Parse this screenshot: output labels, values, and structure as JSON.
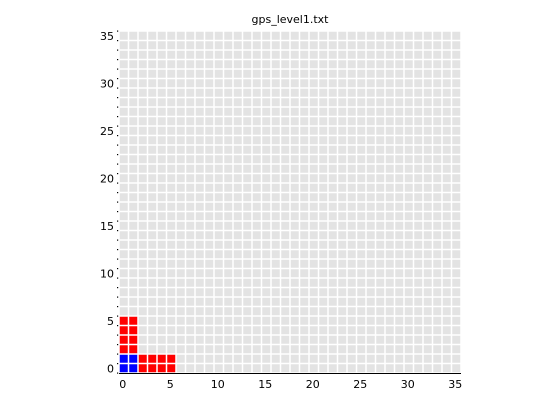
{
  "chart_data": {
    "type": "heatmap",
    "title": "gps_level1.txt",
    "xlabel": "",
    "ylabel": "",
    "xlim": [
      0,
      36
    ],
    "ylim": [
      0,
      36
    ],
    "xticks": [
      0,
      5,
      10,
      15,
      20,
      25,
      30,
      35
    ],
    "yticks": [
      0,
      5,
      10,
      15,
      20,
      25,
      30,
      35
    ],
    "grid": true,
    "colors": {
      "background_cell": "#e3e3e3",
      "red": "#ff0000",
      "blue": "#0000ff"
    },
    "cells": [
      {
        "x": 0,
        "y": 0,
        "color": "blue"
      },
      {
        "x": 1,
        "y": 0,
        "color": "blue"
      },
      {
        "x": 0,
        "y": 1,
        "color": "blue"
      },
      {
        "x": 1,
        "y": 1,
        "color": "blue"
      },
      {
        "x": 0,
        "y": 2,
        "color": "red"
      },
      {
        "x": 1,
        "y": 2,
        "color": "red"
      },
      {
        "x": 0,
        "y": 3,
        "color": "red"
      },
      {
        "x": 1,
        "y": 3,
        "color": "red"
      },
      {
        "x": 0,
        "y": 4,
        "color": "red"
      },
      {
        "x": 1,
        "y": 4,
        "color": "red"
      },
      {
        "x": 0,
        "y": 5,
        "color": "red"
      },
      {
        "x": 1,
        "y": 5,
        "color": "red"
      },
      {
        "x": 2,
        "y": 0,
        "color": "red"
      },
      {
        "x": 3,
        "y": 0,
        "color": "red"
      },
      {
        "x": 4,
        "y": 0,
        "color": "red"
      },
      {
        "x": 5,
        "y": 0,
        "color": "red"
      },
      {
        "x": 2,
        "y": 1,
        "color": "red"
      },
      {
        "x": 3,
        "y": 1,
        "color": "red"
      },
      {
        "x": 4,
        "y": 1,
        "color": "red"
      },
      {
        "x": 5,
        "y": 1,
        "color": "red"
      }
    ]
  }
}
